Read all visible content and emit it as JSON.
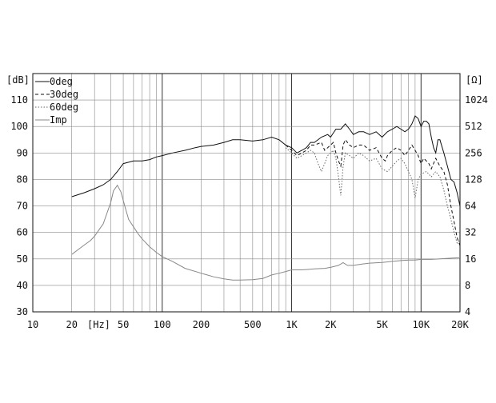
{
  "chart_data": {
    "type": "line",
    "x_scale": "log",
    "xlim": [
      10,
      20000
    ],
    "ylim": [
      30,
      120
    ],
    "ylim_right": [
      4,
      2048
    ],
    "y_right_scale": "log2",
    "grid": true,
    "legend_position": "top-left",
    "ylabel": "[dB]",
    "ylabel_right": "[Ω]",
    "xunit_label": "[Hz]",
    "x_ticks": [
      {
        "value": 10,
        "label": "10"
      },
      {
        "value": 20,
        "label": "20"
      },
      {
        "value": 50,
        "label": "50"
      },
      {
        "value": 100,
        "label": "100"
      },
      {
        "value": 200,
        "label": "200"
      },
      {
        "value": 500,
        "label": "500"
      },
      {
        "value": 1000,
        "label": "1K"
      },
      {
        "value": 2000,
        "label": "2K"
      },
      {
        "value": 5000,
        "label": "5K"
      },
      {
        "value": 10000,
        "label": "10K"
      },
      {
        "value": 20000,
        "label": "20K"
      }
    ],
    "y_ticks": [
      30,
      40,
      50,
      60,
      70,
      80,
      90,
      100,
      110
    ],
    "y_right_ticks": [
      4,
      8,
      16,
      32,
      64,
      128,
      256,
      512,
      1024
    ],
    "series": [
      {
        "name": "0deg",
        "axis": "left",
        "color": "#111111",
        "dash": "",
        "points": [
          [
            20,
            73.5
          ],
          [
            25,
            75
          ],
          [
            30,
            76.5
          ],
          [
            35,
            78
          ],
          [
            40,
            80
          ],
          [
            45,
            83
          ],
          [
            50,
            86
          ],
          [
            55,
            86.5
          ],
          [
            60,
            87
          ],
          [
            70,
            87
          ],
          [
            80,
            87.5
          ],
          [
            90,
            88.5
          ],
          [
            100,
            89
          ],
          [
            120,
            90
          ],
          [
            150,
            91
          ],
          [
            180,
            92
          ],
          [
            200,
            92.5
          ],
          [
            250,
            93
          ],
          [
            300,
            94
          ],
          [
            350,
            95
          ],
          [
            400,
            95
          ],
          [
            500,
            94.5
          ],
          [
            600,
            95
          ],
          [
            700,
            96
          ],
          [
            800,
            95
          ],
          [
            900,
            93
          ],
          [
            1000,
            92
          ],
          [
            1100,
            90
          ],
          [
            1200,
            91
          ],
          [
            1300,
            92
          ],
          [
            1400,
            94
          ],
          [
            1500,
            94
          ],
          [
            1700,
            96
          ],
          [
            1900,
            97
          ],
          [
            2000,
            96
          ],
          [
            2200,
            99
          ],
          [
            2400,
            99
          ],
          [
            2600,
            101
          ],
          [
            2800,
            99
          ],
          [
            3000,
            97
          ],
          [
            3300,
            98
          ],
          [
            3600,
            98
          ],
          [
            4000,
            97
          ],
          [
            4500,
            98
          ],
          [
            5000,
            96
          ],
          [
            5500,
            98
          ],
          [
            6000,
            99
          ],
          [
            6500,
            100
          ],
          [
            7000,
            99
          ],
          [
            7500,
            98
          ],
          [
            8000,
            99
          ],
          [
            8500,
            101
          ],
          [
            9000,
            104
          ],
          [
            9500,
            103
          ],
          [
            10000,
            100
          ],
          [
            10500,
            102
          ],
          [
            11000,
            102
          ],
          [
            11500,
            101
          ],
          [
            12000,
            96
          ],
          [
            12500,
            92
          ],
          [
            13000,
            90
          ],
          [
            13500,
            95
          ],
          [
            14000,
            95
          ],
          [
            15000,
            90
          ],
          [
            16000,
            85
          ],
          [
            17000,
            80
          ],
          [
            18000,
            79
          ],
          [
            19000,
            75
          ],
          [
            20000,
            70
          ]
        ]
      },
      {
        "name": "30deg",
        "axis": "left",
        "color": "#111111",
        "dash": "4 3",
        "points": [
          [
            900,
            93
          ],
          [
            1000,
            91
          ],
          [
            1100,
            89
          ],
          [
            1200,
            90
          ],
          [
            1300,
            91
          ],
          [
            1400,
            93
          ],
          [
            1500,
            93
          ],
          [
            1700,
            94
          ],
          [
            1800,
            91
          ],
          [
            1900,
            92
          ],
          [
            2000,
            93
          ],
          [
            2100,
            94
          ],
          [
            2200,
            90
          ],
          [
            2300,
            87
          ],
          [
            2400,
            85
          ],
          [
            2500,
            93
          ],
          [
            2600,
            95
          ],
          [
            2800,
            93
          ],
          [
            3000,
            92
          ],
          [
            3300,
            93
          ],
          [
            3600,
            93
          ],
          [
            4000,
            91
          ],
          [
            4500,
            92
          ],
          [
            5000,
            88
          ],
          [
            5300,
            87
          ],
          [
            5500,
            89
          ],
          [
            6000,
            91
          ],
          [
            6500,
            92
          ],
          [
            7000,
            91
          ],
          [
            7500,
            89
          ],
          [
            8000,
            91
          ],
          [
            8500,
            93
          ],
          [
            9000,
            91
          ],
          [
            9500,
            89
          ],
          [
            10000,
            86
          ],
          [
            10500,
            88
          ],
          [
            11000,
            87
          ],
          [
            11500,
            86
          ],
          [
            12000,
            84
          ],
          [
            13000,
            88
          ],
          [
            14000,
            85
          ],
          [
            15000,
            83
          ],
          [
            16000,
            78
          ],
          [
            17000,
            70
          ],
          [
            18000,
            64
          ],
          [
            19000,
            58
          ],
          [
            20000,
            55
          ]
        ]
      },
      {
        "name": "60deg",
        "axis": "left",
        "color": "#666666",
        "dash": "1.5 2",
        "points": [
          [
            900,
            92
          ],
          [
            1000,
            90
          ],
          [
            1100,
            88
          ],
          [
            1200,
            89
          ],
          [
            1300,
            90
          ],
          [
            1400,
            91
          ],
          [
            1500,
            90
          ],
          [
            1600,
            86
          ],
          [
            1700,
            83
          ],
          [
            1800,
            86
          ],
          [
            1900,
            89
          ],
          [
            2000,
            90
          ],
          [
            2100,
            91
          ],
          [
            2200,
            88
          ],
          [
            2300,
            81
          ],
          [
            2400,
            74
          ],
          [
            2500,
            85
          ],
          [
            2600,
            90
          ],
          [
            2800,
            89
          ],
          [
            3000,
            88
          ],
          [
            3300,
            90
          ],
          [
            3600,
            89
          ],
          [
            4000,
            87
          ],
          [
            4500,
            88
          ],
          [
            5000,
            84
          ],
          [
            5500,
            83
          ],
          [
            6000,
            85
          ],
          [
            6500,
            87
          ],
          [
            7000,
            88
          ],
          [
            7500,
            86
          ],
          [
            8000,
            83
          ],
          [
            8500,
            80
          ],
          [
            9000,
            73
          ],
          [
            9500,
            80
          ],
          [
            10000,
            82
          ],
          [
            11000,
            83
          ],
          [
            12000,
            81
          ],
          [
            13000,
            83
          ],
          [
            14000,
            81
          ],
          [
            15000,
            76
          ],
          [
            16000,
            70
          ],
          [
            17000,
            65
          ],
          [
            18000,
            60
          ],
          [
            19000,
            56
          ],
          [
            20000,
            57
          ]
        ]
      },
      {
        "name": "Imp",
        "axis": "right",
        "color": "#888888",
        "dash": "",
        "points": [
          [
            20,
            18
          ],
          [
            22,
            20
          ],
          [
            25,
            23
          ],
          [
            28,
            26
          ],
          [
            30,
            29
          ],
          [
            35,
            40
          ],
          [
            40,
            70
          ],
          [
            42,
            95
          ],
          [
            45,
            110
          ],
          [
            48,
            92
          ],
          [
            52,
            60
          ],
          [
            55,
            45
          ],
          [
            60,
            37
          ],
          [
            65,
            31
          ],
          [
            70,
            27
          ],
          [
            80,
            22
          ],
          [
            90,
            19
          ],
          [
            100,
            17
          ],
          [
            120,
            15
          ],
          [
            150,
            12.5
          ],
          [
            200,
            11
          ],
          [
            250,
            10
          ],
          [
            300,
            9.5
          ],
          [
            350,
            9.2
          ],
          [
            400,
            9.2
          ],
          [
            500,
            9.3
          ],
          [
            600,
            9.6
          ],
          [
            700,
            10.5
          ],
          [
            800,
            11
          ],
          [
            900,
            11.5
          ],
          [
            1000,
            12
          ],
          [
            1200,
            12
          ],
          [
            1500,
            12.3
          ],
          [
            1800,
            12.5
          ],
          [
            2000,
            12.8
          ],
          [
            2300,
            13.5
          ],
          [
            2500,
            14.5
          ],
          [
            2700,
            13.5
          ],
          [
            3000,
            13.5
          ],
          [
            3500,
            14
          ],
          [
            4000,
            14.3
          ],
          [
            5000,
            14.6
          ],
          [
            6000,
            15
          ],
          [
            7000,
            15.3
          ],
          [
            8000,
            15.5
          ],
          [
            9000,
            15.5
          ],
          [
            10000,
            15.8
          ],
          [
            12000,
            15.8
          ],
          [
            14000,
            16
          ],
          [
            17000,
            16.3
          ],
          [
            20000,
            16.5
          ]
        ]
      }
    ]
  }
}
